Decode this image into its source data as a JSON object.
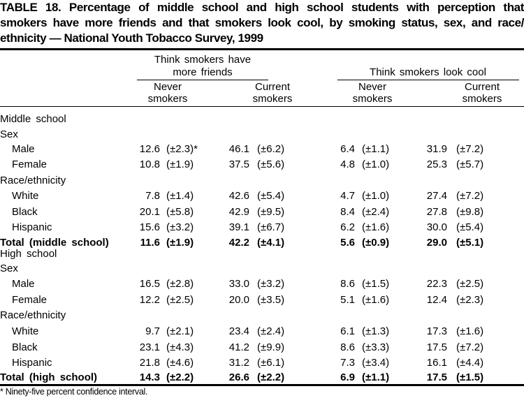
{
  "title_lines": [
    "TABLE 18. Percentage of middle school and high school students with perception that",
    "smokers have more friends and that smokers look cool, by smoking status, sex, and race/",
    "ethnicity — National Youth Tobacco Survey, 1999"
  ],
  "header": {
    "group1": [
      "Think smokers have",
      "more friends"
    ],
    "group2": "Think smokers look cool",
    "sub": [
      [
        "Never",
        "smokers"
      ],
      [
        "Current",
        "smokers"
      ],
      [
        "Never",
        "smokers"
      ],
      [
        "Current",
        "smokers"
      ]
    ]
  },
  "rows": [
    {
      "label": "Middle school",
      "type": "section"
    },
    {
      "label": "Sex",
      "type": "group"
    },
    {
      "label": "Male",
      "type": "data",
      "values": [
        "12.6",
        "(±2.3)*",
        "46.1",
        "(±6.2)",
        "6.4",
        "(±1.1)",
        "31.9",
        "(±7.2)"
      ]
    },
    {
      "label": "Female",
      "type": "data",
      "values": [
        "10.8",
        "(±1.9)",
        "37.5",
        "(±5.6)",
        "4.8",
        "(±1.0)",
        "25.3",
        "(±5.7)"
      ]
    },
    {
      "label": "Race/ethnicity",
      "type": "group"
    },
    {
      "label": "White",
      "type": "data",
      "values": [
        "7.8",
        "(±1.4)",
        "42.6",
        "(±5.4)",
        "4.7",
        "(±1.0)",
        "27.4",
        "(±7.2)"
      ]
    },
    {
      "label": "Black",
      "type": "data",
      "values": [
        "20.1",
        "(±5.8)",
        "42.9",
        "(±9.5)",
        "8.4",
        "(±2.4)",
        "27.8",
        "(±9.8)"
      ]
    },
    {
      "label": "Hispanic",
      "type": "data",
      "values": [
        "15.6",
        "(±3.2)",
        "39.1",
        "(±6.7)",
        "6.2",
        "(±1.6)",
        "30.0",
        "(±5.4)"
      ]
    },
    {
      "label": "Total (middle school)",
      "type": "total",
      "values": [
        "11.6",
        "(±1.9)",
        "42.2",
        "(±4.1)",
        "5.6",
        "(±0.9)",
        "29.0",
        "(±5.1)"
      ]
    },
    {
      "label": "High school",
      "type": "section"
    },
    {
      "label": "Sex",
      "type": "group"
    },
    {
      "label": "Male",
      "type": "data",
      "values": [
        "16.5",
        "(±2.8)",
        "33.0",
        "(±3.2)",
        "8.6",
        "(±1.5)",
        "22.3",
        "(±2.5)"
      ]
    },
    {
      "label": "Female",
      "type": "data",
      "values": [
        "12.2",
        "(±2.5)",
        "20.0",
        "(±3.5)",
        "5.1",
        "(±1.6)",
        "12.4",
        "(±2.3)"
      ]
    },
    {
      "label": "Race/ethnicity",
      "type": "group"
    },
    {
      "label": "White",
      "type": "data",
      "values": [
        "9.7",
        "(±2.1)",
        "23.4",
        "(±2.4)",
        "6.1",
        "(±1.3)",
        "17.3",
        "(±1.6)"
      ]
    },
    {
      "label": "Black",
      "type": "data",
      "values": [
        "23.1",
        "(±4.3)",
        "41.2",
        "(±9.9)",
        "8.6",
        "(±3.3)",
        "17.5",
        "(±7.2)"
      ]
    },
    {
      "label": "Hispanic",
      "type": "data",
      "values": [
        "21.8",
        "(±4.6)",
        "31.2",
        "(±6.1)",
        "7.3",
        "(±3.4)",
        "16.1",
        "(±4.4)"
      ]
    },
    {
      "label": "Total (high school)",
      "type": "total",
      "values": [
        "14.3",
        "(±2.2)",
        "26.6",
        "(±2.2)",
        "6.9",
        "(±1.1)",
        "17.5",
        "(±1.5)"
      ]
    }
  ],
  "footnote": "* Ninety-five percent confidence interval."
}
